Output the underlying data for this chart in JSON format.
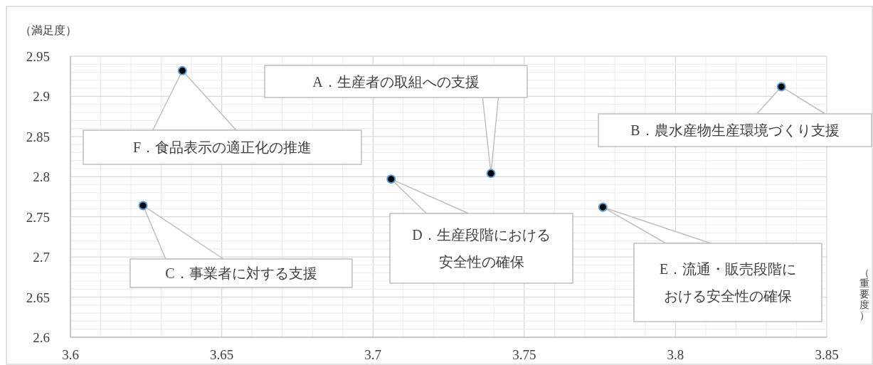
{
  "chart_data": {
    "type": "scatter",
    "xlabel": "（重要度）",
    "ylabel": "（満足度）",
    "x": [
      3.739,
      3.835,
      3.624,
      3.706,
      3.776,
      3.637
    ],
    "series": [
      {
        "color": "#000000",
        "values": [
          2.804,
          2.912,
          2.764,
          2.797,
          2.762,
          2.932
        ]
      }
    ],
    "marker": "circle",
    "grid": true,
    "xlim": [
      3.6,
      3.85
    ],
    "ylim": [
      2.6,
      2.95
    ],
    "xticks": [
      3.6,
      3.65,
      3.7,
      3.75,
      3.8,
      3.85
    ],
    "yticks": [
      2.6,
      2.65,
      2.7,
      2.75,
      2.8,
      2.85,
      2.9,
      2.95
    ],
    "annotations": [
      {
        "text": "A．生産者の取組への支援",
        "x": 3.739,
        "y": 2.804
      },
      {
        "text": "B．農水産物生産環境づくり支援",
        "x": 3.835,
        "y": 2.912
      },
      "C．事業者に対する支援",
      {
        "text": "D．生産段階における安全性の確保",
        "x": 3.706,
        "y": 2.797
      },
      {
        "text": "E．流通・販売段階における安全性の確保",
        "x": 3.776,
        "y": 2.762
      },
      "F．食品表示の適正化の推進"
    ]
  }
}
